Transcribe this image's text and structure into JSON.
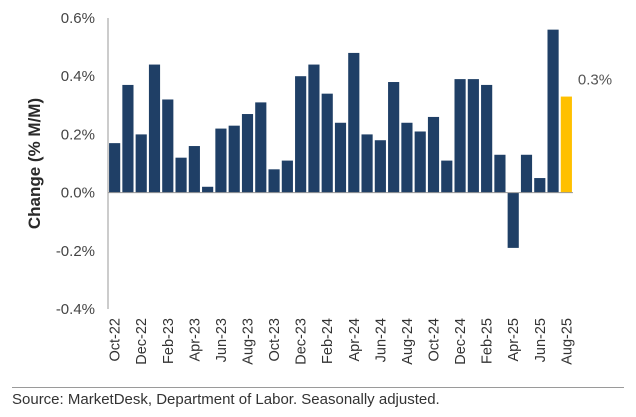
{
  "chart_data": {
    "type": "bar",
    "title": "",
    "xlabel": "",
    "ylabel": "Change (% M/M)",
    "ylim": [
      -0.4,
      0.6
    ],
    "yticks": [
      {
        "value": 0.6,
        "label": "0.6%"
      },
      {
        "value": 0.4,
        "label": "0.4%"
      },
      {
        "value": 0.2,
        "label": "0.2%"
      },
      {
        "value": 0.0,
        "label": "0.0%"
      },
      {
        "value": -0.2,
        "label": "-0.2%"
      },
      {
        "value": -0.4,
        "label": "-0.4%"
      }
    ],
    "grid": false,
    "categories": [
      "Oct-22",
      "Nov-22",
      "Dec-22",
      "Jan-23",
      "Feb-23",
      "Mar-23",
      "Apr-23",
      "May-23",
      "Jun-23",
      "Jul-23",
      "Aug-23",
      "Sep-23",
      "Oct-23",
      "Nov-23",
      "Dec-23",
      "Jan-24",
      "Feb-24",
      "Mar-24",
      "Apr-24",
      "May-24",
      "Jun-24",
      "Jul-24",
      "Aug-24",
      "Sep-24",
      "Oct-24",
      "Nov-24",
      "Dec-24",
      "Jan-25",
      "Feb-25",
      "Mar-25",
      "Apr-25",
      "May-25",
      "Jun-25",
      "Jul-25",
      "Aug-25"
    ],
    "tick_labels": [
      "Oct-22",
      "",
      "Dec-22",
      "",
      "Feb-23",
      "",
      "Apr-23",
      "",
      "Jun-23",
      "",
      "Aug-23",
      "",
      "Oct-23",
      "",
      "Dec-23",
      "",
      "Feb-24",
      "",
      "Apr-24",
      "",
      "Jun-24",
      "",
      "Aug-24",
      "",
      "Oct-24",
      "",
      "Dec-24",
      "",
      "Feb-25",
      "",
      "Apr-25",
      "",
      "Jun-25",
      "",
      "Aug-25"
    ],
    "values": [
      0.17,
      0.37,
      0.2,
      0.44,
      0.32,
      0.12,
      0.16,
      0.02,
      0.22,
      0.23,
      0.27,
      0.31,
      0.08,
      0.11,
      0.4,
      0.44,
      0.34,
      0.24,
      0.48,
      0.2,
      0.18,
      0.38,
      0.24,
      0.21,
      0.26,
      0.11,
      0.39,
      0.39,
      0.37,
      0.13,
      -0.19,
      0.13,
      0.05,
      0.56,
      0.33
    ],
    "highlight_index": 34,
    "colors": {
      "bar": "#1f3f66",
      "highlight": "#ffc000",
      "axis": "#999999"
    },
    "annotation": {
      "text": "0.3%",
      "index": 34
    }
  },
  "footer": {
    "source": "Source: MarketDesk, Department of Labor. Seasonally adjusted."
  }
}
